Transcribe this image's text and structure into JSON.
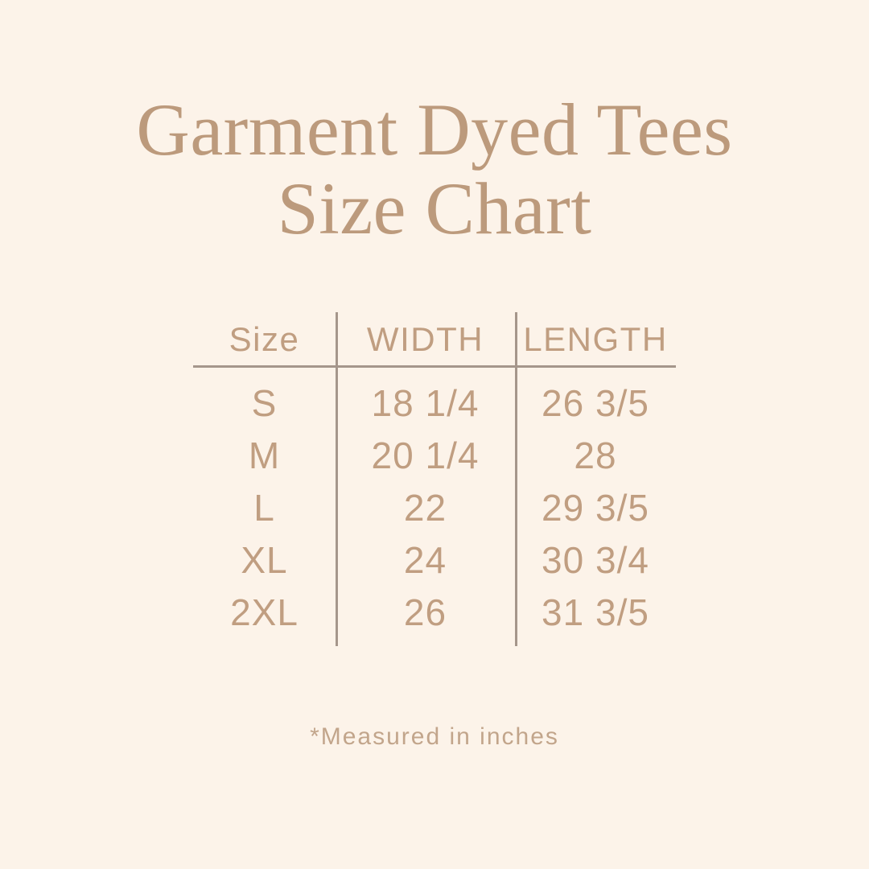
{
  "title": {
    "line1": "Garment Dyed Tees",
    "line2": "Size Chart"
  },
  "footnote": "*Measured in inches",
  "colors": {
    "background": "#fcf3e9",
    "title_text": "#bc9a7c",
    "table_text": "#c09e81",
    "divider_line": "#a5968b",
    "footnote_text": "#c2a58b"
  },
  "chart_data": {
    "type": "table",
    "title": "Garment Dyed Tees Size Chart",
    "columns": [
      "Size",
      "WIDTH",
      "LENGTH"
    ],
    "rows": [
      [
        "S",
        "18 1/4",
        "26 3/5"
      ],
      [
        "M",
        "20 1/4",
        "28"
      ],
      [
        "L",
        "22",
        "29 3/5"
      ],
      [
        "XL",
        "24",
        "30 3/4"
      ],
      [
        "2XL",
        "26",
        "31 3/5"
      ]
    ],
    "footnote": "*Measured in inches",
    "units": "inches",
    "layout": {
      "grid": "off",
      "legend": "none",
      "column_dividers": true,
      "header_rule": true
    }
  }
}
